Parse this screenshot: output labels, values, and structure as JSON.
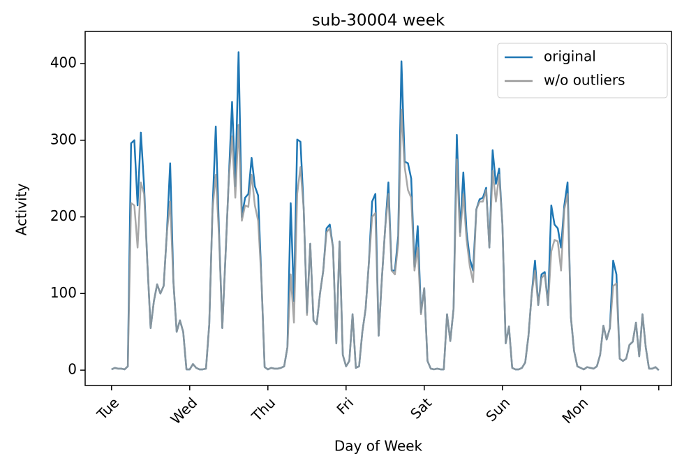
{
  "chart_data": {
    "type": "line",
    "title": "sub-30004 week",
    "xlabel": "Day of Week",
    "ylabel": "Activity",
    "x": [
      0,
      1,
      2,
      3,
      4,
      5,
      6,
      7,
      8,
      9,
      10,
      11,
      12,
      13,
      14,
      15,
      16,
      17,
      18,
      19,
      20,
      21,
      22,
      23,
      24,
      25,
      26,
      27,
      28,
      29,
      30,
      31,
      32,
      33,
      34,
      35,
      36,
      37,
      38,
      39,
      40,
      41,
      42,
      43,
      44,
      45,
      46,
      47,
      48,
      49,
      50,
      51,
      52,
      53,
      54,
      55,
      56,
      57,
      58,
      59,
      60,
      61,
      62,
      63,
      64,
      65,
      66,
      67,
      68,
      69,
      70,
      71,
      72,
      73,
      74,
      75,
      76,
      77,
      78,
      79,
      80,
      81,
      82,
      83,
      84,
      85,
      86,
      87,
      88,
      89,
      90,
      91,
      92,
      93,
      94,
      95,
      96,
      97,
      98,
      99,
      100,
      101,
      102,
      103,
      104,
      105,
      106,
      107,
      108,
      109,
      110,
      111,
      112,
      113,
      114,
      115,
      116,
      117,
      118,
      119,
      120,
      121,
      122,
      123,
      124,
      125,
      126,
      127,
      128,
      129,
      130,
      131,
      132,
      133,
      134,
      135,
      136,
      137,
      138,
      139,
      140,
      141,
      142,
      143,
      144,
      145,
      146,
      147,
      148,
      149,
      150,
      151,
      152,
      153,
      154,
      155,
      156,
      157,
      158,
      159,
      160,
      161,
      162,
      163,
      164,
      165,
      166,
      167,
      168
    ],
    "series": [
      {
        "name": "original",
        "color": "#1f77b4",
        "values": [
          1,
          3,
          2,
          2,
          1,
          5,
          296,
          300,
          215,
          310,
          240,
          140,
          55,
          90,
          112,
          100,
          110,
          180,
          270,
          115,
          50,
          65,
          50,
          1,
          1,
          8,
          3,
          1,
          1,
          2,
          60,
          210,
          318,
          180,
          55,
          150,
          250,
          350,
          240,
          415,
          200,
          225,
          230,
          277,
          240,
          228,
          120,
          4,
          1,
          3,
          2,
          2,
          3,
          5,
          30,
          218,
          90,
          301,
          298,
          210,
          75,
          165,
          65,
          60,
          100,
          130,
          185,
          190,
          160,
          35,
          168,
          20,
          5,
          12,
          73,
          3,
          5,
          50,
          80,
          140,
          220,
          230,
          45,
          120,
          185,
          245,
          130,
          130,
          175,
          403,
          272,
          270,
          250,
          135,
          188,
          75,
          107,
          12,
          2,
          1,
          2,
          1,
          1,
          73,
          38,
          80,
          307,
          180,
          258,
          180,
          145,
          130,
          210,
          223,
          225,
          238,
          160,
          287,
          243,
          263,
          190,
          35,
          57,
          3,
          1,
          1,
          3,
          10,
          45,
          100,
          143,
          85,
          125,
          128,
          85,
          215,
          190,
          185,
          160,
          215,
          245,
          70,
          25,
          5,
          3,
          1,
          4,
          3,
          2,
          5,
          20,
          58,
          40,
          55,
          143,
          125,
          15,
          12,
          15,
          33,
          37,
          62,
          18,
          73,
          30,
          2,
          2,
          4,
          0
        ]
      },
      {
        "name": "w/o outliers",
        "color": "#999999",
        "values": [
          1,
          3,
          2,
          2,
          1,
          5,
          218,
          215,
          160,
          245,
          230,
          140,
          55,
          90,
          112,
          100,
          110,
          180,
          220,
          115,
          50,
          65,
          50,
          1,
          1,
          8,
          3,
          1,
          1,
          2,
          60,
          210,
          255,
          175,
          55,
          150,
          250,
          305,
          225,
          320,
          195,
          215,
          213,
          255,
          215,
          195,
          120,
          4,
          1,
          3,
          2,
          2,
          3,
          5,
          30,
          125,
          62,
          230,
          265,
          210,
          72,
          165,
          65,
          60,
          100,
          130,
          180,
          185,
          160,
          35,
          168,
          20,
          5,
          12,
          73,
          3,
          5,
          50,
          80,
          140,
          200,
          205,
          45,
          120,
          185,
          230,
          130,
          125,
          165,
          340,
          265,
          235,
          225,
          130,
          160,
          73,
          107,
          12,
          2,
          1,
          2,
          1,
          1,
          73,
          38,
          80,
          275,
          175,
          230,
          170,
          135,
          115,
          210,
          220,
          220,
          235,
          160,
          260,
          220,
          255,
          190,
          35,
          57,
          3,
          1,
          1,
          3,
          10,
          45,
          100,
          130,
          85,
          120,
          125,
          85,
          155,
          170,
          168,
          130,
          210,
          230,
          70,
          25,
          5,
          3,
          1,
          4,
          3,
          2,
          5,
          20,
          58,
          40,
          55,
          110,
          113,
          15,
          12,
          15,
          33,
          37,
          62,
          18,
          73,
          30,
          2,
          2,
          4,
          0
        ]
      }
    ],
    "xlim": [
      -8.1,
      171.9
    ],
    "ylim": [
      -20,
      442
    ],
    "xticks": [
      {
        "value": 0,
        "label": "Tue"
      },
      {
        "value": 24,
        "label": "Wed"
      },
      {
        "value": 48,
        "label": "Thu"
      },
      {
        "value": 72,
        "label": "Fri"
      },
      {
        "value": 96,
        "label": "Sat"
      },
      {
        "value": 120,
        "label": "Sun"
      },
      {
        "value": 144,
        "label": "Mon"
      },
      {
        "value": 168,
        "label": null
      }
    ],
    "yticks": [
      0,
      100,
      200,
      300,
      400
    ],
    "legend": "upper right"
  }
}
